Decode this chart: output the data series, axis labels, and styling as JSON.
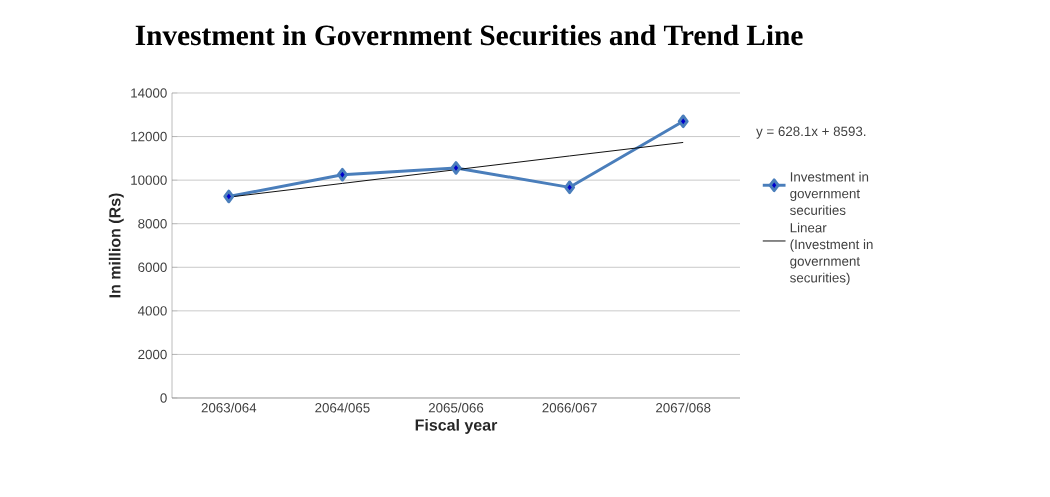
{
  "chart_data": {
    "type": "line",
    "title": "Investment in Government Securities and Trend Line",
    "xlabel": "Fiscal year",
    "ylabel": "In million (Rs)",
    "categories": [
      "2063/064",
      "2064/065",
      "2065/066",
      "2066/067",
      "2067/068"
    ],
    "series": [
      {
        "name": "Investment in government securities",
        "color": "#4a7ebb",
        "marker": "diamond",
        "values": [
          9250,
          10250,
          10560,
          9670,
          12700
        ]
      },
      {
        "name": "Linear (Investment in government securities)",
        "color": "#000000",
        "marker": "none",
        "line_style": "solid",
        "values": [
          9220,
          9850,
          10480,
          11110,
          11730
        ]
      }
    ],
    "ylim": [
      0,
      14000
    ],
    "yticks": [
      0,
      2000,
      4000,
      6000,
      8000,
      10000,
      12000,
      14000
    ],
    "grid": "y",
    "legend": "right",
    "annotations": [
      "y = 628.1x + 8593."
    ]
  }
}
